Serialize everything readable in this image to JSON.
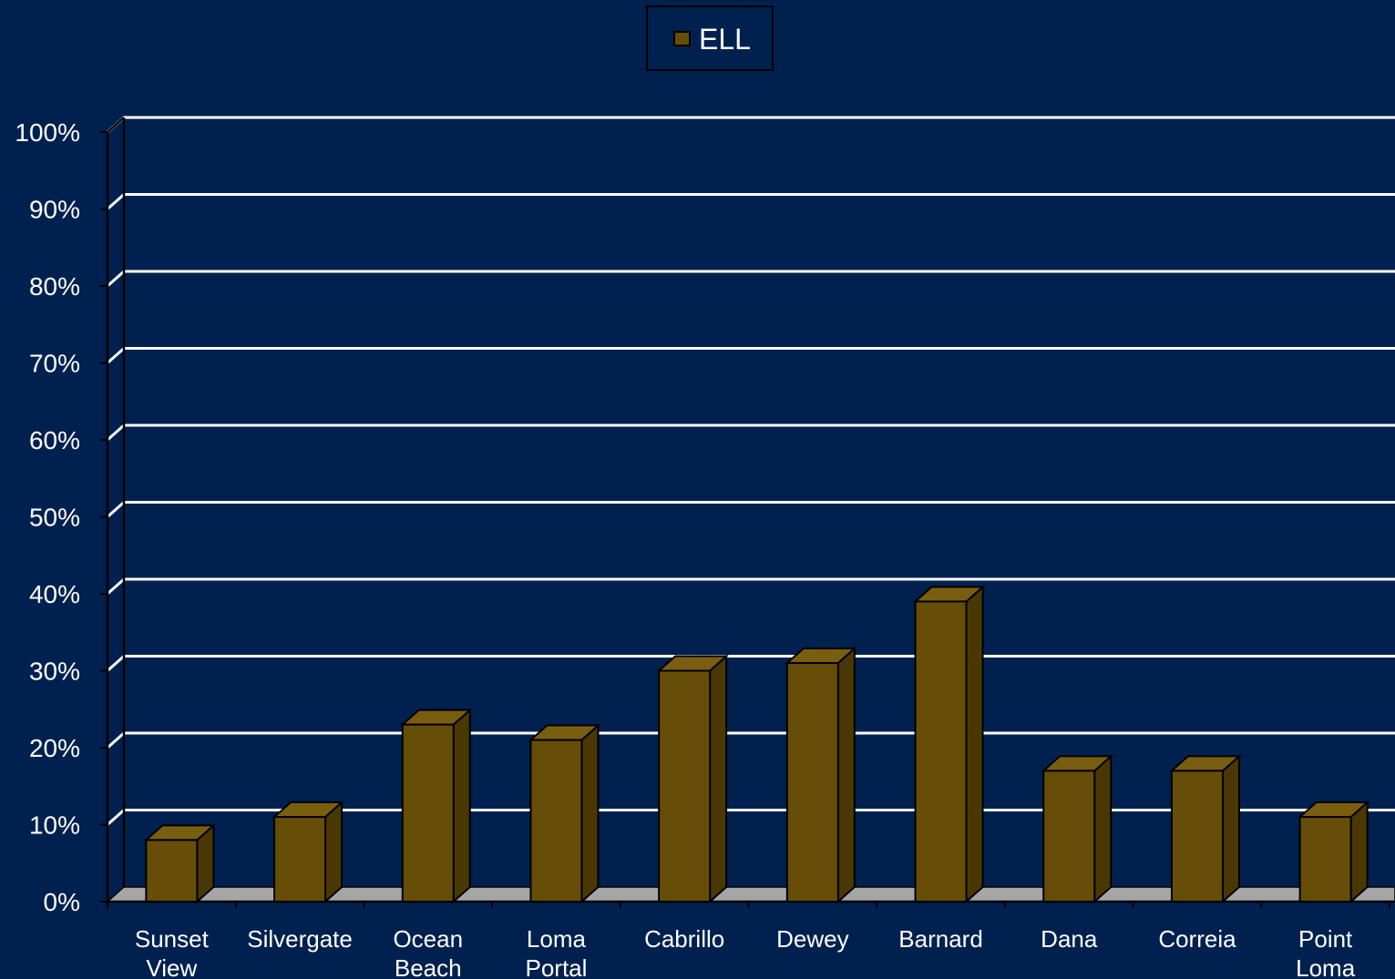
{
  "chart_data": {
    "type": "bar",
    "categories": [
      [
        "Sunset",
        "View"
      ],
      [
        "Silvergate"
      ],
      [
        "Ocean",
        "Beach"
      ],
      [
        "Loma",
        "Portal"
      ],
      [
        "Cabrillo"
      ],
      [
        "Dewey"
      ],
      [
        "Barnard"
      ],
      [
        "Dana"
      ],
      [
        "Correia"
      ],
      [
        "Point",
        "Loma"
      ]
    ],
    "series": [
      {
        "name": "ELL",
        "values": [
          8,
          11,
          23,
          21,
          30,
          31,
          39,
          17,
          17,
          11
        ]
      }
    ],
    "ylim": [
      0,
      100
    ],
    "yticks": [
      "0%",
      "10%",
      "20%",
      "30%",
      "40%",
      "50%",
      "60%",
      "70%",
      "80%",
      "90%",
      "100%"
    ],
    "grid": true,
    "legend_position": "top-center",
    "colors": {
      "background": "#00214f",
      "bar_front": "#664d08",
      "bar_side": "#4a3804",
      "bar_top": "#7a5e10",
      "floor": "#a6a6a6",
      "grid": "#ffffff",
      "text": "#ffffff"
    }
  }
}
